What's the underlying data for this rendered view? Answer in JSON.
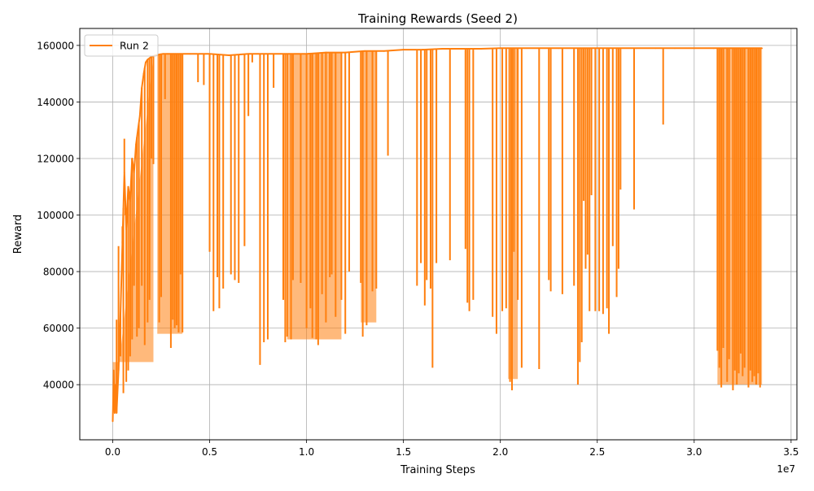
{
  "chart_data": {
    "type": "line",
    "title": "Training Rewards (Seed 2)",
    "xlabel": "Training Steps",
    "ylabel": "Reward",
    "x_offset_label": "1e7",
    "x_scale": 10000000,
    "xlim": [
      -1700000,
      35300000
    ],
    "ylim": [
      20500,
      166000
    ],
    "x_ticks": [
      0,
      5000000,
      10000000,
      15000000,
      20000000,
      25000000,
      30000000,
      35000000
    ],
    "x_tick_labels": [
      "0.0",
      "0.5",
      "1.0",
      "1.5",
      "2.0",
      "2.5",
      "3.0",
      "3.5"
    ],
    "y_ticks": [
      40000,
      60000,
      80000,
      100000,
      120000,
      140000,
      160000
    ],
    "y_tick_labels": [
      "40000",
      "60000",
      "80000",
      "100000",
      "120000",
      "140000",
      "160000"
    ],
    "grid": true,
    "legend_position": "top-left",
    "color": "#ff7f0e",
    "series": [
      {
        "name": "Run 2",
        "x": [
          0,
          50000,
          100000,
          150000,
          200000,
          300000,
          400000,
          500000,
          600000,
          700000,
          800000,
          900000,
          1000000,
          1100000,
          1200000,
          1300000,
          1400000,
          1500000,
          1600000,
          1700000,
          1800000,
          1900000,
          2000000,
          2200000,
          2400000,
          2600000,
          2800000,
          3000000,
          3500000,
          4000000,
          5000000,
          6000000,
          7000000,
          8000000,
          9000000,
          10000000,
          11000000,
          12000000,
          13000000,
          14000000,
          15000000,
          16000000,
          17000000,
          18000000,
          19000000,
          20000000,
          21000000,
          22000000,
          23000000,
          24000000,
          25000000,
          26000000,
          27000000,
          28000000,
          29000000,
          30000000,
          31000000,
          32000000,
          33000000,
          33500000
        ],
        "y": [
          27000,
          45000,
          30000,
          40000,
          30000,
          45000,
          65000,
          90000,
          115000,
          95000,
          110000,
          105000,
          120000,
          115000,
          125000,
          130000,
          135000,
          145000,
          150000,
          154000,
          155000,
          155500,
          156000,
          156500,
          156800,
          157000,
          157000,
          157000,
          157000,
          157000,
          157000,
          156500,
          157000,
          157000,
          157000,
          157000,
          157500,
          157500,
          158000,
          158000,
          158500,
          158500,
          158800,
          158800,
          158800,
          159000,
          159000,
          159000,
          159000,
          159000,
          159000,
          159000,
          159000,
          159000,
          159000,
          159000,
          159000,
          159000,
          159000,
          159000
        ]
      }
    ],
    "dips": [
      [
        200000,
        63000
      ],
      [
        300000,
        89000
      ],
      [
        400000,
        50000
      ],
      [
        500000,
        96000
      ],
      [
        550000,
        37000
      ],
      [
        600000,
        127000
      ],
      [
        650000,
        100000
      ],
      [
        700000,
        41000
      ],
      [
        800000,
        45000
      ],
      [
        900000,
        50000
      ],
      [
        1000000,
        56000
      ],
      [
        1100000,
        75000
      ],
      [
        1250000,
        57000
      ],
      [
        1350000,
        60000
      ],
      [
        1500000,
        75000
      ],
      [
        1650000,
        54000
      ],
      [
        1800000,
        62000
      ],
      [
        1900000,
        70000
      ],
      [
        2000000,
        120000
      ],
      [
        2100000,
        118000
      ],
      [
        2400000,
        62000
      ],
      [
        2500000,
        71000
      ],
      [
        2700000,
        141000
      ],
      [
        3000000,
        53000
      ],
      [
        3100000,
        63000
      ],
      [
        3200000,
        60000
      ],
      [
        3300000,
        61000
      ],
      [
        3400000,
        58500
      ],
      [
        3500000,
        79000
      ],
      [
        3600000,
        58500
      ],
      [
        4400000,
        147000
      ],
      [
        4700000,
        146000
      ],
      [
        5000000,
        87000
      ],
      [
        5200000,
        66000
      ],
      [
        5400000,
        78000
      ],
      [
        5500000,
        67000
      ],
      [
        5700000,
        74000
      ],
      [
        6100000,
        79000
      ],
      [
        6300000,
        77000
      ],
      [
        6500000,
        76000
      ],
      [
        6800000,
        89000
      ],
      [
        7000000,
        135000
      ],
      [
        7200000,
        154000
      ],
      [
        7600000,
        47000
      ],
      [
        7800000,
        55000
      ],
      [
        8000000,
        56000
      ],
      [
        8300000,
        145000
      ],
      [
        8800000,
        70000
      ],
      [
        8900000,
        55000
      ],
      [
        9000000,
        57000
      ],
      [
        9200000,
        56000
      ],
      [
        9300000,
        77000
      ],
      [
        9700000,
        76000
      ],
      [
        10000000,
        60000
      ],
      [
        10200000,
        67000
      ],
      [
        10300000,
        56500
      ],
      [
        10500000,
        56000
      ],
      [
        10600000,
        54000
      ],
      [
        10800000,
        72000
      ],
      [
        11000000,
        62000
      ],
      [
        11200000,
        78000
      ],
      [
        11300000,
        79000
      ],
      [
        11500000,
        64000
      ],
      [
        11800000,
        70000
      ],
      [
        12000000,
        58000
      ],
      [
        12200000,
        80000
      ],
      [
        12800000,
        76000
      ],
      [
        12900000,
        57000
      ],
      [
        13100000,
        61000
      ],
      [
        13400000,
        73000
      ],
      [
        13600000,
        74000
      ],
      [
        14200000,
        121000
      ],
      [
        15700000,
        75000
      ],
      [
        15900000,
        83000
      ],
      [
        16100000,
        68000
      ],
      [
        16200000,
        77000
      ],
      [
        16400000,
        74000
      ],
      [
        16500000,
        46000
      ],
      [
        16700000,
        83000
      ],
      [
        17400000,
        84000
      ],
      [
        18200000,
        88000
      ],
      [
        18300000,
        69000
      ],
      [
        18400000,
        66000
      ],
      [
        18600000,
        70000
      ],
      [
        19600000,
        64000
      ],
      [
        19800000,
        58000
      ],
      [
        20100000,
        66000
      ],
      [
        20300000,
        67000
      ],
      [
        20500000,
        41000
      ],
      [
        20600000,
        38000
      ],
      [
        20700000,
        87000
      ],
      [
        20900000,
        70000
      ],
      [
        21100000,
        46000
      ],
      [
        22000000,
        45500
      ],
      [
        22500000,
        77000
      ],
      [
        22600000,
        73000
      ],
      [
        23200000,
        72000
      ],
      [
        23800000,
        75000
      ],
      [
        24000000,
        40000
      ],
      [
        24100000,
        48000
      ],
      [
        24200000,
        55000
      ],
      [
        24300000,
        105000
      ],
      [
        24400000,
        81000
      ],
      [
        24500000,
        86000
      ],
      [
        24600000,
        66000
      ],
      [
        24700000,
        107000
      ],
      [
        24900000,
        66000
      ],
      [
        25100000,
        66000
      ],
      [
        25300000,
        65000
      ],
      [
        25500000,
        67000
      ],
      [
        25600000,
        58000
      ],
      [
        25800000,
        89000
      ],
      [
        26000000,
        71000
      ],
      [
        26100000,
        81000
      ],
      [
        26200000,
        109000
      ],
      [
        26900000,
        102000
      ],
      [
        28400000,
        132000
      ],
      [
        31200000,
        52000
      ],
      [
        31300000,
        46000
      ],
      [
        31400000,
        39000
      ],
      [
        31500000,
        53000
      ],
      [
        31700000,
        41000
      ],
      [
        31800000,
        49000
      ],
      [
        32000000,
        38000
      ],
      [
        32100000,
        45000
      ],
      [
        32200000,
        40000
      ],
      [
        32300000,
        44000
      ],
      [
        32400000,
        51000
      ],
      [
        32500000,
        43000
      ],
      [
        32600000,
        46000
      ],
      [
        32800000,
        39000
      ],
      [
        32900000,
        45000
      ],
      [
        33000000,
        41000
      ],
      [
        33100000,
        43000
      ],
      [
        33200000,
        40000
      ],
      [
        33300000,
        44000
      ],
      [
        33400000,
        39000
      ]
    ]
  }
}
